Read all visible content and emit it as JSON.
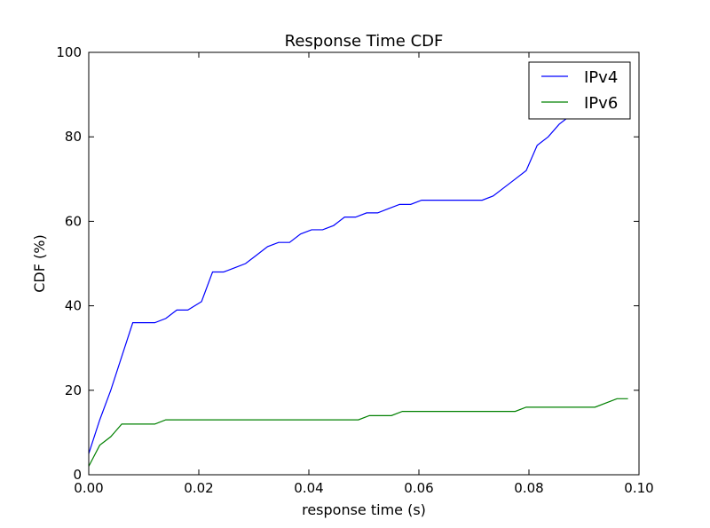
{
  "chart_data": {
    "type": "line",
    "title": "Response Time CDF",
    "xlabel": "response time (s)",
    "ylabel": "CDF (%)",
    "xlim": [
      0.0,
      0.1
    ],
    "ylim": [
      0,
      100
    ],
    "xticks": [
      0.0,
      0.02,
      0.04,
      0.06,
      0.08,
      0.1
    ],
    "xtick_labels": [
      "0.00",
      "0.02",
      "0.04",
      "0.06",
      "0.08",
      "0.10"
    ],
    "yticks": [
      0,
      20,
      40,
      60,
      80,
      100
    ],
    "ytick_labels": [
      "0",
      "20",
      "40",
      "60",
      "80",
      "100"
    ],
    "grid": false,
    "legend_position": "top-right",
    "series": [
      {
        "name": "IPv4",
        "color": "#0000ff",
        "x": [
          0.0,
          0.002,
          0.004,
          0.006,
          0.008,
          0.01,
          0.012,
          0.014,
          0.016,
          0.018,
          0.0205,
          0.0225,
          0.0245,
          0.0265,
          0.0285,
          0.0305,
          0.0325,
          0.0345,
          0.0365,
          0.0385,
          0.0405,
          0.0425,
          0.0445,
          0.0465,
          0.0485,
          0.0505,
          0.0525,
          0.0545,
          0.0565,
          0.0585,
          0.0605,
          0.0715,
          0.0735,
          0.0755,
          0.0775,
          0.0795,
          0.0815,
          0.0835,
          0.0855,
          0.0875,
          0.09
        ],
        "values": [
          5,
          13,
          20,
          28,
          36,
          36,
          36,
          37,
          39,
          39,
          41,
          48,
          48,
          49,
          50,
          52,
          54,
          55,
          55,
          57,
          58,
          58,
          59,
          61,
          61,
          62,
          62,
          63,
          64,
          64,
          65,
          65,
          66,
          68,
          70,
          72,
          78,
          80,
          83,
          85,
          86
        ]
      },
      {
        "name": "IPv6",
        "color": "#008000",
        "x": [
          0.0,
          0.002,
          0.004,
          0.006,
          0.008,
          0.01,
          0.012,
          0.014,
          0.016,
          0.049,
          0.051,
          0.055,
          0.057,
          0.0775,
          0.0795,
          0.092,
          0.096,
          0.098
        ],
        "values": [
          2,
          7,
          9,
          12,
          12,
          12,
          12,
          13,
          13,
          13,
          14,
          14,
          15,
          15,
          16,
          16,
          18,
          18
        ]
      }
    ]
  }
}
